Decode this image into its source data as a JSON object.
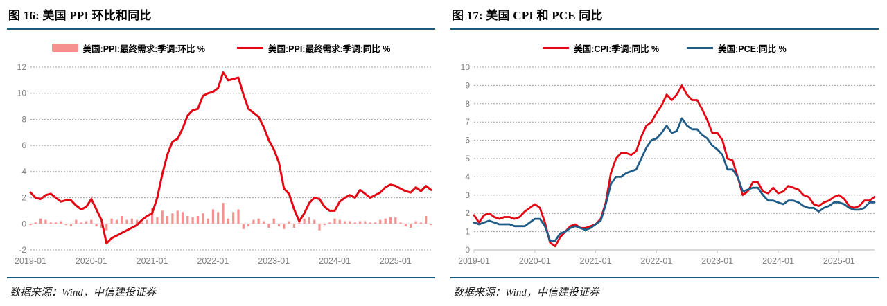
{
  "accent_color": "#1a5a7c",
  "panels": [
    {
      "title": "图 16:  美国 PPI 环比和同比",
      "source": "数据来源：Wind，中信建投证券"
    },
    {
      "title": "图 17:  美国 CPI 和 PCE 同比",
      "source": "数据来源：Wind，中信建投证券"
    }
  ],
  "chart_data": [
    {
      "type": "bar+line",
      "title": "美国 PPI 环比和同比",
      "x_start": "2019-01",
      "x_end": "2025-08",
      "x_tick_labels": [
        "2019-01",
        "2020-01",
        "2021-01",
        "2022-01",
        "2023-01",
        "2024-01",
        "2025-01"
      ],
      "x_tick_indices": [
        0,
        12,
        24,
        36,
        48,
        60,
        72
      ],
      "ylim": [
        -2,
        12
      ],
      "ytick_step": 2,
      "grid": "dashed",
      "show_x_ticks": false,
      "grid_color": "#9d9d9d",
      "axis_color": "#c4c4c4",
      "tick_label_color": "#808080",
      "legend_position": "top",
      "series": [
        {
          "name": "美国:PPI:最终需求:季调:环比 %",
          "type": "bar",
          "color": "#f5918f",
          "values": [
            -0.1,
            0.1,
            0.4,
            0.3,
            0.1,
            0.1,
            0.2,
            -0.1,
            -0.2,
            0.3,
            0.1,
            0.2,
            0.3,
            -0.2,
            -0.3,
            -0.5,
            0.4,
            0.3,
            0.6,
            0.3,
            0.4,
            0.3,
            0.1,
            0.3,
            1.2,
            0.5,
            1.0,
            0.6,
            0.8,
            1.0,
            0.9,
            0.6,
            0.5,
            0.6,
            0.8,
            0.4,
            1.1,
            0.9,
            1.6,
            0.4,
            0.9,
            1.1,
            -0.4,
            -0.2,
            0.3,
            0.4,
            0.2,
            -0.3,
            0.4,
            -0.2,
            -0.4,
            0.2,
            -0.3,
            0.1,
            0.4,
            0.5,
            0.3,
            -0.5,
            -0.1,
            0.1,
            0.4,
            0.3,
            0.2,
            0.2,
            0.1,
            0.2,
            0.2,
            0.1,
            0.1,
            0.3,
            0.4,
            0.5,
            0.5,
            0.1,
            -0.2,
            -0.3,
            0.2,
            0.1,
            0.6,
            -0.1
          ]
        },
        {
          "name": "美国:PPI:最终需求:季调:同比 %",
          "type": "line",
          "color": "#e30613",
          "width": 3,
          "values": [
            2.4,
            2.0,
            1.9,
            2.2,
            2.3,
            2.0,
            1.7,
            1.8,
            1.8,
            1.4,
            1.1,
            1.3,
            1.9,
            1.1,
            0.3,
            -1.5,
            -1.1,
            -0.9,
            -0.7,
            -0.5,
            -0.3,
            -0.1,
            0.3,
            0.6,
            0.8,
            2.0,
            3.8,
            5.3,
            6.3,
            6.5,
            7.3,
            8.3,
            8.7,
            8.8,
            9.8,
            10.0,
            10.1,
            10.4,
            11.6,
            11.0,
            11.1,
            11.2,
            9.9,
            8.8,
            8.5,
            8.2,
            7.4,
            6.4,
            5.7,
            4.7,
            2.7,
            2.3,
            1.1,
            0.2,
            0.8,
            1.6,
            2.0,
            1.9,
            1.3,
            1.0,
            1.0,
            1.7,
            2.0,
            2.2,
            2.0,
            2.6,
            2.3,
            2.0,
            2.2,
            2.4,
            2.8,
            3.0,
            2.9,
            2.7,
            2.5,
            2.4,
            2.8,
            2.5,
            2.9,
            2.6
          ]
        }
      ]
    },
    {
      "type": "line",
      "title": "美国 CPI 和 PCE 同比",
      "x_start": "2019-01",
      "x_end": "2025-08",
      "x_tick_labels": [
        "2019-01",
        "2020-01",
        "2021-01",
        "2022-01",
        "2023-01",
        "2024-01",
        "2025-01"
      ],
      "x_tick_indices": [
        0,
        12,
        24,
        36,
        48,
        60,
        72
      ],
      "ylim": [
        0,
        10
      ],
      "ytick_step": 1,
      "grid": "dashed",
      "show_x_ticks": true,
      "grid_color": "#9d9d9d",
      "axis_color": "#c4c4c4",
      "tick_label_color": "#808080",
      "legend_position": "top",
      "series": [
        {
          "name": "美国:CPI:季调:同比 %",
          "type": "line",
          "color": "#e30613",
          "width": 2.8,
          "values": [
            1.9,
            1.5,
            1.9,
            2.0,
            1.8,
            1.7,
            1.8,
            1.8,
            1.7,
            1.8,
            2.1,
            2.3,
            2.5,
            2.3,
            1.5,
            0.4,
            0.2,
            0.7,
            1.0,
            1.3,
            1.4,
            1.2,
            1.2,
            1.3,
            1.4,
            1.7,
            2.6,
            4.2,
            5.0,
            5.3,
            5.3,
            5.2,
            5.4,
            6.2,
            6.8,
            7.0,
            7.5,
            7.9,
            8.5,
            8.2,
            8.5,
            9.0,
            8.5,
            8.2,
            8.2,
            7.7,
            7.1,
            6.4,
            6.4,
            6.0,
            5.0,
            4.9,
            4.0,
            3.0,
            3.2,
            3.7,
            3.7,
            3.2,
            3.1,
            3.4,
            3.1,
            3.2,
            3.5,
            3.4,
            3.3,
            3.0,
            2.9,
            2.5,
            2.4,
            2.6,
            2.7,
            2.9,
            3.0,
            2.8,
            2.4,
            2.3,
            2.4,
            2.7,
            2.7,
            2.9
          ]
        },
        {
          "name": "美国:PCE:同比 %",
          "type": "line",
          "color": "#1f5c87",
          "width": 2.8,
          "values": [
            1.5,
            1.4,
            1.5,
            1.6,
            1.5,
            1.4,
            1.4,
            1.4,
            1.3,
            1.3,
            1.3,
            1.5,
            1.7,
            1.7,
            1.3,
            0.5,
            0.5,
            0.9,
            1.0,
            1.2,
            1.3,
            1.2,
            1.1,
            1.2,
            1.4,
            1.6,
            2.5,
            3.6,
            4.0,
            4.0,
            4.2,
            4.3,
            4.4,
            5.0,
            5.6,
            6.0,
            6.1,
            6.4,
            6.8,
            6.4,
            6.5,
            7.2,
            6.8,
            6.6,
            6.6,
            6.3,
            6.1,
            5.7,
            5.5,
            5.2,
            4.4,
            4.4,
            4.0,
            3.2,
            3.3,
            3.4,
            3.4,
            3.0,
            2.7,
            2.7,
            2.6,
            2.5,
            2.7,
            2.7,
            2.6,
            2.4,
            2.3,
            2.3,
            2.1,
            2.3,
            2.4,
            2.6,
            2.6,
            2.5,
            2.3,
            2.2,
            2.2,
            2.3,
            2.6,
            2.6
          ]
        }
      ]
    }
  ]
}
